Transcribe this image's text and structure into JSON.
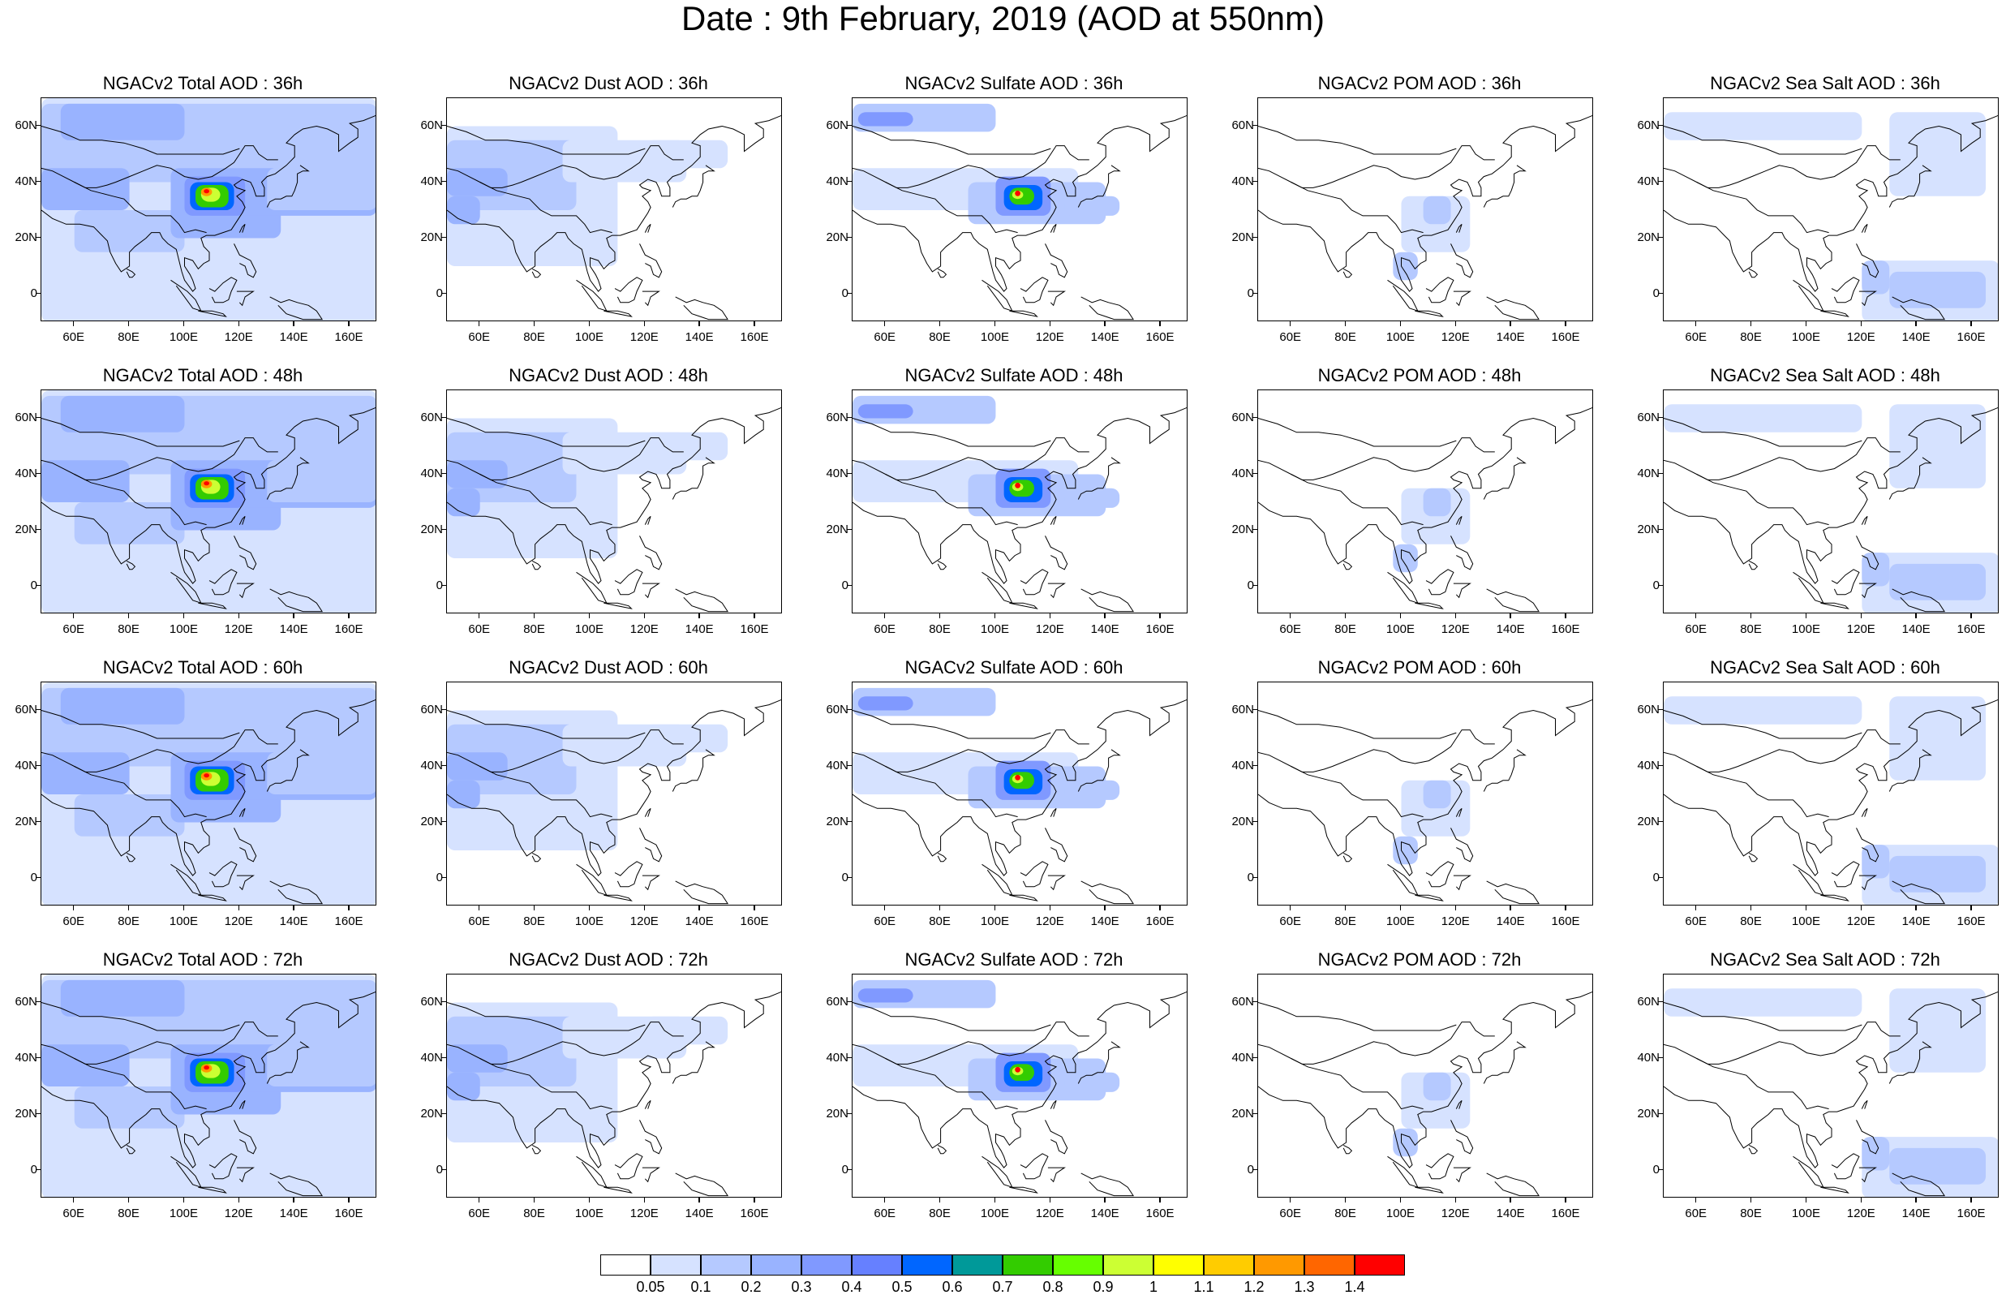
{
  "title": "Date : 9th February, 2019 (AOD at 550nm)",
  "x_tick_labels": [
    "60E",
    "80E",
    "100E",
    "120E",
    "140E",
    "160E"
  ],
  "y_tick_labels": [
    "60N",
    "40N",
    "20N",
    "0"
  ],
  "colors": {
    "white": "#ffffff",
    "scale": [
      "#ffffff",
      "#d6e2ff",
      "#b5c9ff",
      "#99b3ff",
      "#8099ff",
      "#6680ff",
      "#0066ff",
      "#009999",
      "#33cc00",
      "#66ff00",
      "#ccff33",
      "#ffff00",
      "#ffcc00",
      "#ff9900",
      "#ff6600",
      "#ff0000"
    ]
  },
  "colorbar": {
    "labels": [
      "0.05",
      "0.1",
      "0.2",
      "0.3",
      "0.4",
      "0.5",
      "0.6",
      "0.7",
      "0.8",
      "0.9",
      "1",
      "1.1",
      "1.2",
      "1.3",
      "1.4"
    ],
    "colors": [
      "#ffffff",
      "#d6e2ff",
      "#b5c9ff",
      "#99b3ff",
      "#8099ff",
      "#6680ff",
      "#0066ff",
      "#009999",
      "#33cc00",
      "#66ff00",
      "#ccff33",
      "#ffff00",
      "#ffcc00",
      "#ff9900",
      "#ff6600",
      "#ff0000"
    ]
  },
  "rows": [
    {
      "panels": [
        {
          "title": "NGACv2 Total AOD : 36h",
          "species": "total"
        },
        {
          "title": "NGACv2 Dust AOD : 36h",
          "species": "dust"
        },
        {
          "title": "NGACv2 Sulfate AOD : 36h",
          "species": "sulfate"
        },
        {
          "title": "NGACv2 POM AOD : 36h",
          "species": "pom"
        },
        {
          "title": "NGACv2 Sea Salt AOD : 36h",
          "species": "seasalt"
        }
      ]
    },
    {
      "panels": [
        {
          "title": "NGACv2 Total AOD : 48h",
          "species": "total"
        },
        {
          "title": "NGACv2 Dust AOD : 48h",
          "species": "dust"
        },
        {
          "title": "NGACv2 Sulfate AOD : 48h",
          "species": "sulfate"
        },
        {
          "title": "NGACv2 POM AOD : 48h",
          "species": "pom"
        },
        {
          "title": "NGACv2 Sea Salt AOD : 48h",
          "species": "seasalt"
        }
      ]
    },
    {
      "panels": [
        {
          "title": "NGACv2 Total AOD : 60h",
          "species": "total"
        },
        {
          "title": "NGACv2 Dust AOD : 60h",
          "species": "dust"
        },
        {
          "title": "NGACv2 Sulfate AOD : 60h",
          "species": "sulfate"
        },
        {
          "title": "NGACv2 POM AOD : 60h",
          "species": "pom"
        },
        {
          "title": "NGACv2 Sea Salt AOD : 60h",
          "species": "seasalt"
        }
      ]
    },
    {
      "panels": [
        {
          "title": "NGACv2 Total AOD : 72h",
          "species": "total"
        },
        {
          "title": "NGACv2 Dust AOD : 72h",
          "species": "dust"
        },
        {
          "title": "NGACv2 Sulfate AOD : 72h",
          "species": "sulfate"
        },
        {
          "title": "NGACv2 POM AOD : 72h",
          "species": "pom"
        },
        {
          "title": "NGACv2 Sea Salt  AOD : 72h",
          "species": "seasalt"
        }
      ]
    }
  ]
}
